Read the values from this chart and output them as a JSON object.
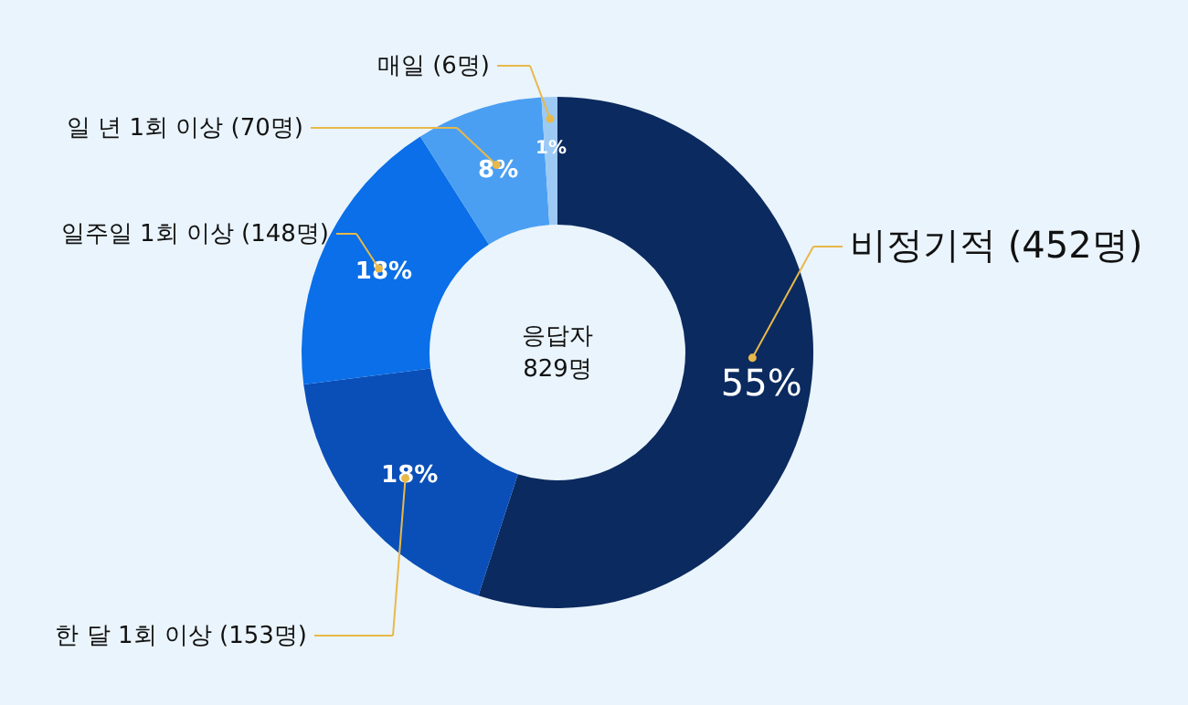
{
  "chart_data": {
    "type": "donut",
    "categories": [
      "비정기적 (452명)",
      "한 달 1회 이상 (153명)",
      "일주일 1회 이상 (148명)",
      "일 년 1회 이상 (70명)",
      "매일 (6명)"
    ],
    "values": [
      55,
      18,
      18,
      8,
      1
    ],
    "colors": [
      "#0b2a5f",
      "#0a4fb8",
      "#0a6fe8",
      "#4a9ff2",
      "#9ccaf5"
    ],
    "value_labels": [
      "55%",
      "18%",
      "18%",
      "8%",
      "1%"
    ],
    "annotations": [
      "응답자",
      "829명"
    ]
  }
}
